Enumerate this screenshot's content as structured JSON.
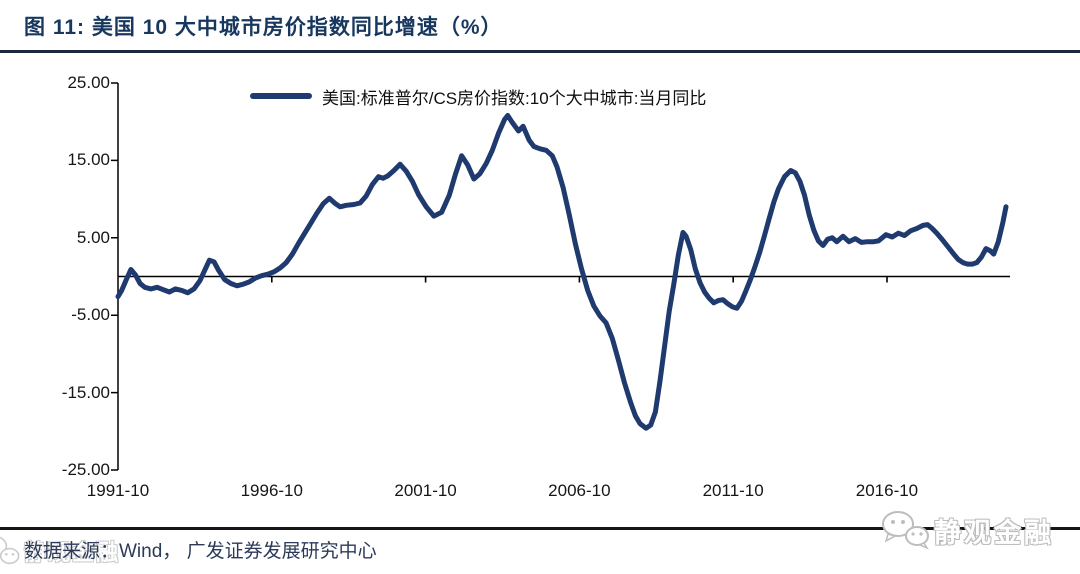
{
  "header": {
    "title": "图 11:  美国 10 大中城市房价指数同比增速（%）"
  },
  "footer": {
    "source": "数据来源：Wind， 广发证券发展研究中心",
    "watermark": "静观金融",
    "watermark_icon": "wechat-chat-bubbles-icon"
  },
  "colors": {
    "line": "#1f3a6e",
    "title": "#17375e",
    "axis": "#000000",
    "top_rule": "#1c2740",
    "bottom_rule": "#161616",
    "watermark_outline": "#bdbdbd"
  },
  "chart_data": {
    "type": "line",
    "title": "美国 10 大中城市房价指数同比增速（%）",
    "xlabel": "",
    "ylabel": "",
    "grid": false,
    "legend_position": "top-center",
    "zero_line": true,
    "xlim": [
      1991.83,
      2020.83
    ],
    "ylim": [
      -25,
      25
    ],
    "y_ticks": {
      "values": [
        25,
        15,
        5,
        -5,
        -15,
        -25
      ],
      "labels": [
        "25.00",
        "15.00",
        "5.00",
        "-5.00",
        "-15.00",
        "-25.00"
      ]
    },
    "x_ticks": {
      "values": [
        1991.83,
        1996.83,
        2001.83,
        2006.83,
        2011.83,
        2016.83
      ],
      "labels": [
        "1991-10",
        "1996-10",
        "2001-10",
        "2006-10",
        "2011-10",
        "2016-10"
      ]
    },
    "series": [
      {
        "name": "美国:标准普尔/CS房价指数:10个大中城市:当月同比",
        "color": "#1f3a6e",
        "points": [
          [
            1991.83,
            -2.6
          ],
          [
            1991.95,
            -1.8
          ],
          [
            1992.1,
            -0.4
          ],
          [
            1992.25,
            0.9
          ],
          [
            1992.4,
            0.2
          ],
          [
            1992.55,
            -0.9
          ],
          [
            1992.7,
            -1.4
          ],
          [
            1992.9,
            -1.6
          ],
          [
            1993.1,
            -1.4
          ],
          [
            1993.3,
            -1.7
          ],
          [
            1993.5,
            -2.0
          ],
          [
            1993.7,
            -1.6
          ],
          [
            1993.9,
            -1.8
          ],
          [
            1994.1,
            -2.1
          ],
          [
            1994.3,
            -1.6
          ],
          [
            1994.5,
            -0.5
          ],
          [
            1994.65,
            0.8
          ],
          [
            1994.8,
            2.1
          ],
          [
            1994.95,
            1.9
          ],
          [
            1995.1,
            0.8
          ],
          [
            1995.3,
            -0.4
          ],
          [
            1995.5,
            -0.9
          ],
          [
            1995.7,
            -1.2
          ],
          [
            1995.9,
            -1.0
          ],
          [
            1996.1,
            -0.7
          ],
          [
            1996.3,
            -0.2
          ],
          [
            1996.5,
            0.1
          ],
          [
            1996.7,
            0.3
          ],
          [
            1996.9,
            0.6
          ],
          [
            1997.1,
            1.1
          ],
          [
            1997.3,
            1.8
          ],
          [
            1997.5,
            2.9
          ],
          [
            1997.7,
            4.3
          ],
          [
            1997.9,
            5.6
          ],
          [
            1998.1,
            6.9
          ],
          [
            1998.3,
            8.2
          ],
          [
            1998.5,
            9.4
          ],
          [
            1998.7,
            10.1
          ],
          [
            1998.9,
            9.4
          ],
          [
            1999.05,
            9.0
          ],
          [
            1999.25,
            9.2
          ],
          [
            1999.5,
            9.3
          ],
          [
            1999.7,
            9.5
          ],
          [
            1999.9,
            10.4
          ],
          [
            2000.1,
            11.9
          ],
          [
            2000.3,
            12.9
          ],
          [
            2000.45,
            12.7
          ],
          [
            2000.6,
            13.0
          ],
          [
            2000.8,
            13.7
          ],
          [
            2001.0,
            14.5
          ],
          [
            2001.2,
            13.6
          ],
          [
            2001.4,
            12.3
          ],
          [
            2001.6,
            10.6
          ],
          [
            2001.85,
            9.0
          ],
          [
            2002.1,
            7.8
          ],
          [
            2002.35,
            8.3
          ],
          [
            2002.6,
            10.5
          ],
          [
            2002.8,
            13.2
          ],
          [
            2003.0,
            15.6
          ],
          [
            2003.2,
            14.4
          ],
          [
            2003.4,
            12.6
          ],
          [
            2003.6,
            13.3
          ],
          [
            2003.8,
            14.6
          ],
          [
            2004.0,
            16.3
          ],
          [
            2004.2,
            18.5
          ],
          [
            2004.4,
            20.3
          ],
          [
            2004.5,
            20.8
          ],
          [
            2004.65,
            19.9
          ],
          [
            2004.85,
            18.8
          ],
          [
            2005.0,
            19.4
          ],
          [
            2005.2,
            17.6
          ],
          [
            2005.35,
            16.8
          ],
          [
            2005.55,
            16.5
          ],
          [
            2005.75,
            16.3
          ],
          [
            2005.95,
            15.6
          ],
          [
            2006.1,
            14.2
          ],
          [
            2006.3,
            11.5
          ],
          [
            2006.5,
            8.0
          ],
          [
            2006.7,
            4.2
          ],
          [
            2006.9,
            1.0
          ],
          [
            2007.1,
            -1.8
          ],
          [
            2007.3,
            -3.8
          ],
          [
            2007.5,
            -5.1
          ],
          [
            2007.7,
            -6.0
          ],
          [
            2007.9,
            -8.0
          ],
          [
            2008.1,
            -10.8
          ],
          [
            2008.3,
            -13.8
          ],
          [
            2008.5,
            -16.3
          ],
          [
            2008.65,
            -18.0
          ],
          [
            2008.8,
            -19.0
          ],
          [
            2009.0,
            -19.6
          ],
          [
            2009.15,
            -19.2
          ],
          [
            2009.3,
            -17.5
          ],
          [
            2009.45,
            -13.5
          ],
          [
            2009.6,
            -9.0
          ],
          [
            2009.75,
            -4.5
          ],
          [
            2009.9,
            -1.0
          ],
          [
            2010.05,
            2.8
          ],
          [
            2010.2,
            5.7
          ],
          [
            2010.3,
            5.2
          ],
          [
            2010.45,
            3.5
          ],
          [
            2010.6,
            1.0
          ],
          [
            2010.75,
            -0.8
          ],
          [
            2010.9,
            -2.0
          ],
          [
            2011.05,
            -2.8
          ],
          [
            2011.2,
            -3.4
          ],
          [
            2011.35,
            -3.1
          ],
          [
            2011.5,
            -3.0
          ],
          [
            2011.65,
            -3.5
          ],
          [
            2011.8,
            -3.9
          ],
          [
            2011.95,
            -4.1
          ],
          [
            2012.1,
            -3.2
          ],
          [
            2012.25,
            -1.8
          ],
          [
            2012.4,
            -0.3
          ],
          [
            2012.55,
            1.4
          ],
          [
            2012.7,
            3.2
          ],
          [
            2012.85,
            5.3
          ],
          [
            2013.0,
            7.5
          ],
          [
            2013.15,
            9.6
          ],
          [
            2013.3,
            11.3
          ],
          [
            2013.5,
            12.9
          ],
          [
            2013.7,
            13.7
          ],
          [
            2013.85,
            13.4
          ],
          [
            2014.0,
            12.3
          ],
          [
            2014.15,
            10.5
          ],
          [
            2014.3,
            8.0
          ],
          [
            2014.45,
            6.0
          ],
          [
            2014.6,
            4.6
          ],
          [
            2014.75,
            4.0
          ],
          [
            2014.9,
            4.8
          ],
          [
            2015.05,
            5.0
          ],
          [
            2015.2,
            4.5
          ],
          [
            2015.4,
            5.2
          ],
          [
            2015.6,
            4.5
          ],
          [
            2015.8,
            4.9
          ],
          [
            2016.0,
            4.4
          ],
          [
            2016.2,
            4.5
          ],
          [
            2016.4,
            4.5
          ],
          [
            2016.55,
            4.6
          ],
          [
            2016.8,
            5.4
          ],
          [
            2017.0,
            5.1
          ],
          [
            2017.2,
            5.6
          ],
          [
            2017.4,
            5.3
          ],
          [
            2017.6,
            5.9
          ],
          [
            2017.8,
            6.2
          ],
          [
            2018.0,
            6.6
          ],
          [
            2018.15,
            6.7
          ],
          [
            2018.3,
            6.2
          ],
          [
            2018.45,
            5.6
          ],
          [
            2018.6,
            4.9
          ],
          [
            2018.8,
            3.9
          ],
          [
            2019.0,
            2.9
          ],
          [
            2019.15,
            2.2
          ],
          [
            2019.3,
            1.8
          ],
          [
            2019.45,
            1.6
          ],
          [
            2019.6,
            1.6
          ],
          [
            2019.75,
            1.8
          ],
          [
            2019.9,
            2.5
          ],
          [
            2020.05,
            3.6
          ],
          [
            2020.2,
            3.3
          ],
          [
            2020.3,
            2.9
          ],
          [
            2020.45,
            4.5
          ],
          [
            2020.6,
            7.0
          ],
          [
            2020.7,
            9.0
          ]
        ]
      }
    ]
  }
}
